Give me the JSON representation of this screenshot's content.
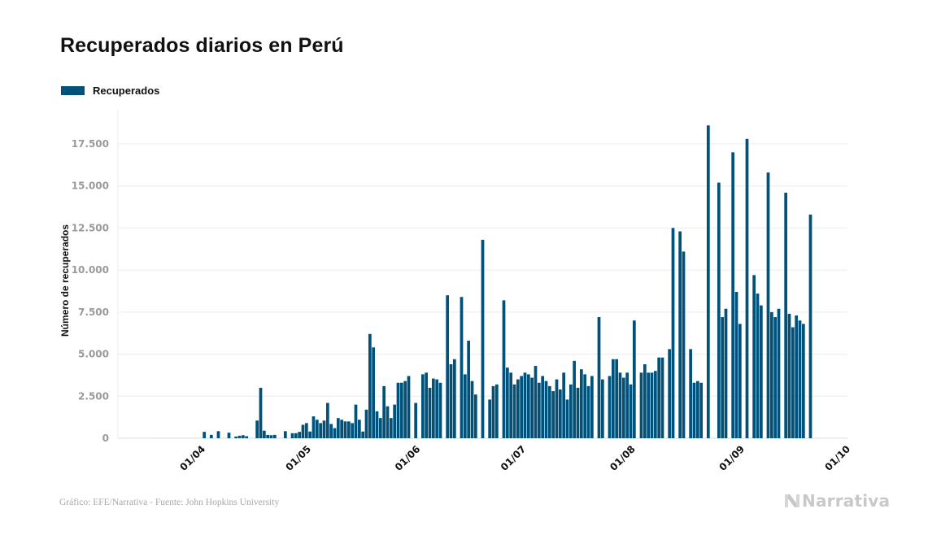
{
  "title": "Recuperados diarios en Perú",
  "legend": {
    "label": "Recuperados",
    "color": "#00527a"
  },
  "source": "Gráfico: EFE/Narrativa - Fuente: John Hopkins University",
  "brand": {
    "name": "Narrativa",
    "icon": "narrativa-n-logo-icon",
    "color": "#c8c8c8"
  },
  "chart_data": {
    "type": "bar",
    "title": "Recuperados diarios en Perú",
    "xlabel": "",
    "ylabel": "Número de recuperados",
    "ylim": [
      0,
      18700
    ],
    "yticks": [
      0,
      2500,
      5000,
      7500,
      10000,
      12500,
      15000,
      17500
    ],
    "ytick_labels": [
      "0",
      "2.500",
      "5.000",
      "7.500",
      "10.000",
      "12.500",
      "15.000",
      "17.500"
    ],
    "xticks": [
      "01/04",
      "01/05",
      "01/06",
      "01/07",
      "01/08",
      "01/09",
      "01/10"
    ],
    "xtick_dates": [
      "2020-04-01",
      "2020-05-01",
      "2020-06-01",
      "2020-07-01",
      "2020-08-01",
      "2020-09-01",
      "2020-10-01"
    ],
    "x_domain": [
      "2020-03-08",
      "2020-10-01"
    ],
    "grid": true,
    "legend_position": "top-left",
    "color": "#00527a",
    "series": [
      {
        "name": "Recuperados",
        "start_date": "2020-03-17",
        "values": [
          0,
          0,
          0,
          0,
          0,
          0,
          0,
          0,
          0,
          0,
          0,
          0,
          0,
          0,
          0,
          380,
          0,
          200,
          0,
          420,
          0,
          0,
          330,
          0,
          100,
          150,
          180,
          120,
          0,
          0,
          1050,
          3000,
          450,
          200,
          180,
          200,
          0,
          0,
          420,
          0,
          300,
          300,
          380,
          800,
          900,
          400,
          1300,
          1100,
          900,
          1050,
          2100,
          850,
          600,
          1200,
          1100,
          1000,
          1000,
          900,
          2000,
          1100,
          400,
          1700,
          6200,
          5400,
          1600,
          1200,
          3100,
          1900,
          1200,
          2000,
          3300,
          3300,
          3400,
          3700,
          0,
          2100,
          0,
          3800,
          3900,
          3000,
          3550,
          3500,
          3300,
          0,
          8500,
          4400,
          4700,
          0,
          8400,
          3800,
          5800,
          3400,
          2600,
          0,
          11800,
          0,
          2300,
          3100,
          3200,
          0,
          8200,
          4200,
          3900,
          3200,
          3500,
          3700,
          3900,
          3800,
          3600,
          4300,
          3300,
          3700,
          3400,
          3100,
          2800,
          3500,
          2900,
          3900,
          2300,
          3200,
          4600,
          3000,
          4100,
          3800,
          3100,
          3700,
          0,
          7200,
          3500,
          0,
          3700,
          4700,
          4700,
          3900,
          3600,
          3900,
          3200,
          7000,
          0,
          3900,
          4400,
          3900,
          3900,
          4000,
          4800,
          4800,
          0,
          5300,
          12500,
          0,
          12300,
          11100,
          0,
          5300,
          3300,
          3400,
          3300,
          0,
          18600,
          0,
          0,
          15200,
          7200,
          7700,
          0,
          17000,
          8700,
          6800,
          0,
          17800,
          0,
          9700,
          8600,
          7900,
          0,
          15800,
          7500,
          7200,
          7700,
          0,
          14600,
          7400,
          6600,
          7300,
          7000,
          6800,
          0,
          13300
        ]
      }
    ]
  }
}
